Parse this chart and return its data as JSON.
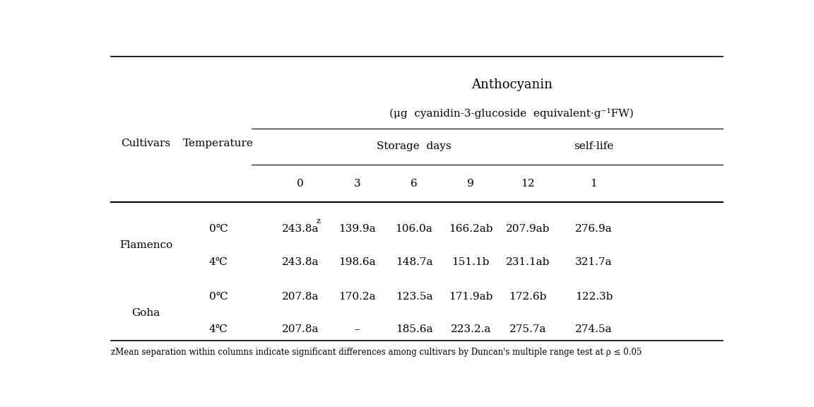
{
  "title_line1": "Anthocyanin",
  "title_line2": "(μg  cyanidin-3-glucoside  equivalent·g⁻¹FW)",
  "col_header_1": "Cultivars",
  "col_header_2": "Temperature",
  "storage_days_label": "Storage  days",
  "self_life_label": "self-life",
  "day_headers": [
    "0",
    "3",
    "6",
    "9",
    "12",
    "1"
  ],
  "rows": [
    {
      "cultivar": "Flamenco",
      "temp": "0℃",
      "values": [
        "243.8a",
        "139.9a",
        "106.0a",
        "166.2ab",
        "207.9ab",
        "276.9a"
      ],
      "superscript_col": 0,
      "superscript": "z"
    },
    {
      "cultivar": "",
      "temp": "4℃",
      "values": [
        "243.8a",
        "198.6a",
        "148.7a",
        "151.1b",
        "231.1ab",
        "321.7a"
      ],
      "superscript_col": -1,
      "superscript": ""
    },
    {
      "cultivar": "Goha",
      "temp": "0℃",
      "values": [
        "207.8a",
        "170.2a",
        "123.5a",
        "171.9ab",
        "172.6b",
        "122.3b"
      ],
      "superscript_col": -1,
      "superscript": ""
    },
    {
      "cultivar": "",
      "temp": "4℃",
      "values": [
        "207.8a",
        "–",
        "185.6a",
        "223.2.a",
        "275.7a",
        "274.5a"
      ],
      "superscript_col": -1,
      "superscript": ""
    }
  ],
  "footnote": "ᴢMean separation within columns indicate significant differences among cultivars by Duncan's multiple range test at ρ ≤ 0.05",
  "bg_color": "#ffffff",
  "text_color": "#000000",
  "line_color": "#000000",
  "font_size_title": 13,
  "font_size_header": 11,
  "font_size_data": 11,
  "font_size_footnote": 8.5
}
